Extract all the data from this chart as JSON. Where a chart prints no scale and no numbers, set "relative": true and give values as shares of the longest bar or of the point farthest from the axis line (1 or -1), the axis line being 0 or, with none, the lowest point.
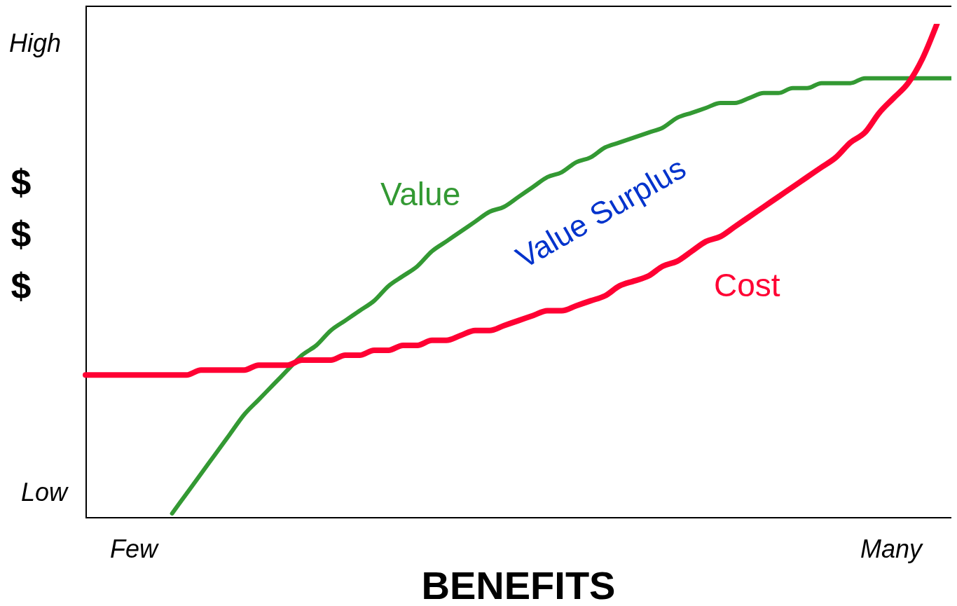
{
  "chart_data": {
    "type": "line",
    "relative": true,
    "xlabel": "BENEFITS",
    "ylabel": "$ $ $",
    "categories": [
      null,
      null,
      null,
      null,
      null,
      null,
      null,
      null,
      null,
      null,
      null,
      null,
      null,
      null,
      null,
      null,
      null,
      null,
      null,
      null,
      null,
      null,
      null,
      null,
      null,
      null,
      null,
      null,
      null,
      null,
      null,
      null,
      null,
      null,
      null,
      null,
      null,
      null,
      null,
      null,
      null,
      null,
      null,
      null,
      null,
      null,
      null,
      null,
      null,
      null,
      null,
      null,
      null,
      null,
      null,
      null,
      null,
      null,
      null,
      null,
      null
    ],
    "series": [
      {
        "name": "Value",
        "color": "#339933",
        "values": [
          null,
          null,
          null,
          null,
          null,
          null,
          0.01,
          0.05,
          0.09,
          0.13,
          0.17,
          0.21,
          0.24,
          0.27,
          0.3,
          0.33,
          0.35,
          0.38,
          0.4,
          0.42,
          0.44,
          0.47,
          0.49,
          0.51,
          0.54,
          0.56,
          0.58,
          0.6,
          0.62,
          0.63,
          0.65,
          0.67,
          0.69,
          0.7,
          0.72,
          0.73,
          0.75,
          0.76,
          0.77,
          0.78,
          0.79,
          0.81,
          0.82,
          0.83,
          0.84,
          0.84,
          0.85,
          0.86,
          0.86,
          0.87,
          0.87,
          0.88,
          0.88,
          0.88,
          0.89,
          0.89,
          0.89,
          0.89,
          0.89,
          0.89,
          0.89
        ]
      },
      {
        "name": "Cost",
        "color": "#ff0033",
        "values": [
          0.29,
          0.29,
          0.29,
          0.29,
          0.29,
          0.29,
          0.29,
          0.29,
          0.3,
          0.3,
          0.3,
          0.3,
          0.31,
          0.31,
          0.31,
          0.32,
          0.32,
          0.32,
          0.33,
          0.33,
          0.34,
          0.34,
          0.35,
          0.35,
          0.36,
          0.36,
          0.37,
          0.38,
          0.38,
          0.39,
          0.4,
          0.41,
          0.42,
          0.42,
          0.43,
          0.44,
          0.45,
          0.47,
          0.48,
          0.49,
          0.51,
          0.52,
          0.54,
          0.56,
          0.57,
          0.59,
          0.61,
          0.63,
          0.65,
          0.67,
          0.69,
          0.71,
          0.73,
          0.76,
          0.78,
          0.82,
          0.85,
          0.88,
          0.93,
          1,
          null
        ]
      }
    ],
    "annotations": [
      "High",
      "Low",
      "Few",
      "Many",
      "Value Surplus"
    ]
  }
}
